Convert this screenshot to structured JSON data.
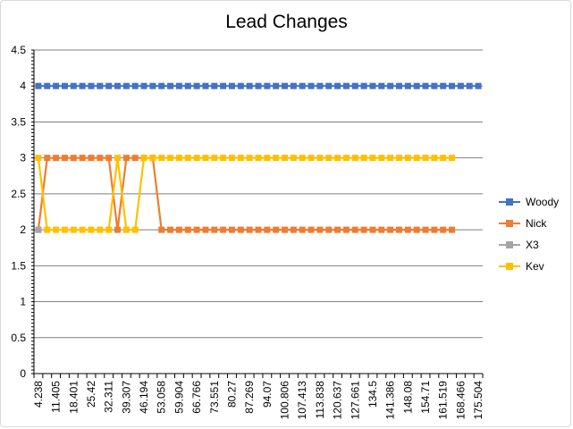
{
  "chart_data": {
    "type": "line",
    "title": "Lead Changes",
    "ylim": [
      0,
      4.5
    ],
    "y_ticks": [
      "0",
      "0.5",
      "1",
      "1.5",
      "2",
      "2.5",
      "3",
      "3.5",
      "4",
      "4.5"
    ],
    "grid": true,
    "legend_position": "right",
    "x_tick_labels": [
      "4.238",
      "11.405",
      "18.401",
      "25.42",
      "32.311",
      "39.307",
      "46.194",
      "53.058",
      "59.904",
      "66.766",
      "73.551",
      "80.27",
      "87.269",
      "94.07",
      "100.806",
      "107.413",
      "113.838",
      "120.637",
      "127.661",
      "134.5",
      "141.386",
      "148.08",
      "154.71",
      "161.519",
      "168.466",
      "175.504"
    ],
    "num_categories": 51,
    "series": [
      {
        "name": "Woody",
        "color": "#4472C4",
        "values": [
          4,
          4,
          4,
          4,
          4,
          4,
          4,
          4,
          4,
          4,
          4,
          4,
          4,
          4,
          4,
          4,
          4,
          4,
          4,
          4,
          4,
          4,
          4,
          4,
          4,
          4,
          4,
          4,
          4,
          4,
          4,
          4,
          4,
          4,
          4,
          4,
          4,
          4,
          4,
          4,
          4,
          4,
          4,
          4,
          4,
          4,
          4,
          4,
          4,
          4,
          4
        ]
      },
      {
        "name": "Nick",
        "color": "#ED7D31",
        "values": [
          2,
          3,
          3,
          3,
          3,
          3,
          3,
          3,
          3,
          2,
          3,
          3,
          3,
          3,
          2,
          2,
          2,
          2,
          2,
          2,
          2,
          2,
          2,
          2,
          2,
          2,
          2,
          2,
          2,
          2,
          2,
          2,
          2,
          2,
          2,
          2,
          2,
          2,
          2,
          2,
          2,
          2,
          2,
          2,
          2,
          2,
          2,
          2,
          null,
          null,
          null
        ]
      },
      {
        "name": "X3",
        "color": "#A5A5A5",
        "values": [
          2,
          null,
          null,
          null,
          null,
          null,
          null,
          null,
          null,
          null,
          null,
          null,
          null,
          null,
          null,
          null,
          null,
          null,
          null,
          null,
          null,
          null,
          null,
          null,
          null,
          null,
          null,
          null,
          null,
          null,
          null,
          null,
          null,
          null,
          null,
          null,
          null,
          null,
          null,
          null,
          null,
          null,
          null,
          null,
          null,
          null,
          null,
          null,
          null,
          null,
          null
        ]
      },
      {
        "name": "Kev",
        "color": "#FFC000",
        "values": [
          3,
          2,
          2,
          2,
          2,
          2,
          2,
          2,
          2,
          3,
          2,
          2,
          3,
          3,
          3,
          3,
          3,
          3,
          3,
          3,
          3,
          3,
          3,
          3,
          3,
          3,
          3,
          3,
          3,
          3,
          3,
          3,
          3,
          3,
          3,
          3,
          3,
          3,
          3,
          3,
          3,
          3,
          3,
          3,
          3,
          3,
          3,
          3,
          null,
          null,
          null
        ]
      }
    ]
  },
  "legend": {
    "items": [
      {
        "label": "Woody"
      },
      {
        "label": "Nick"
      },
      {
        "label": "X3"
      },
      {
        "label": "Kev"
      }
    ]
  }
}
